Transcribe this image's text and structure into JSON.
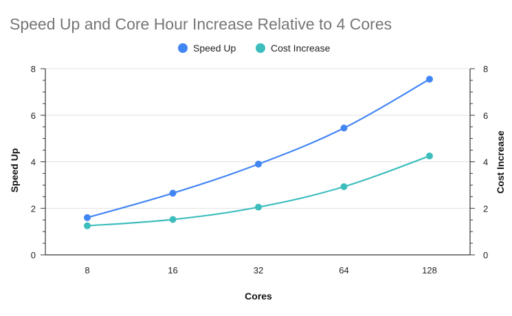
{
  "chart_data": {
    "type": "line",
    "title": "Speed Up and Core Hour Increase Relative to 4 Cores",
    "xlabel": "Cores",
    "ylabel_left": "Speed Up",
    "ylabel_right": "Cost Increase",
    "categories": [
      "8",
      "16",
      "32",
      "64",
      "128"
    ],
    "ylim": [
      0,
      8
    ],
    "yticks": [
      "0",
      "2",
      "4",
      "6",
      "8"
    ],
    "grid": true,
    "legend_position": "top-center",
    "series": [
      {
        "name": "Speed Up",
        "color": "#4285f4",
        "values": [
          1.6,
          2.65,
          3.9,
          5.45,
          7.55
        ]
      },
      {
        "name": "Cost Increase",
        "color": "#3dbdbd",
        "values": [
          1.25,
          1.52,
          2.05,
          2.93,
          4.25
        ]
      }
    ]
  }
}
